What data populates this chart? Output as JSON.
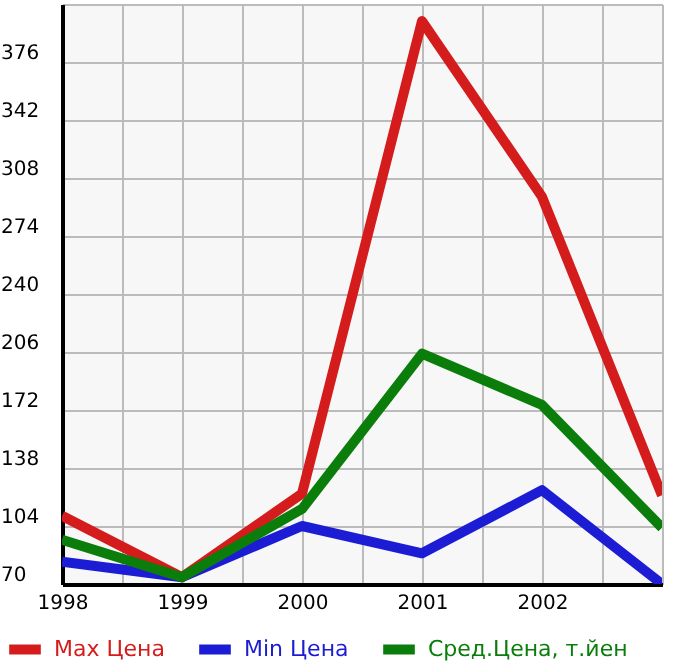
{
  "chart_data": {
    "type": "line",
    "x": [
      1998,
      1999,
      2000,
      2001,
      2002,
      2003
    ],
    "series": [
      {
        "name": "Max Цена",
        "color": "#d41c1c",
        "values": [
          110,
          74,
          123,
          400,
          297,
          122
        ]
      },
      {
        "name": "Min Цена",
        "color": "#1c1cd4",
        "values": [
          83,
          74,
          104,
          88,
          125,
          70
        ]
      },
      {
        "name": "Сред.Цена, т.йен",
        "color": "#0a7d0a",
        "values": [
          96,
          74,
          114,
          205,
          175,
          103
        ]
      }
    ],
    "xlim": [
      1998,
      2003
    ],
    "xticks": [
      1998,
      {
        "value": 1998.5,
        "label": null
      },
      1999,
      {
        "value": 1999.5,
        "label": null
      },
      2000,
      {
        "value": 2000.5,
        "label": null
      },
      2001,
      {
        "value": 2001.5,
        "label": null
      },
      2002,
      {
        "value": 2002.5,
        "label": null
      },
      {
        "value": 2003,
        "label": null
      }
    ],
    "ylim": [
      70,
      410
    ],
    "yticks": [
      70,
      104,
      138,
      172,
      206,
      240,
      274,
      308,
      342,
      376,
      {
        "value": 410,
        "label": null
      }
    ],
    "grid": true,
    "legend": "bottom",
    "marker": "none",
    "line_style": "solid"
  }
}
